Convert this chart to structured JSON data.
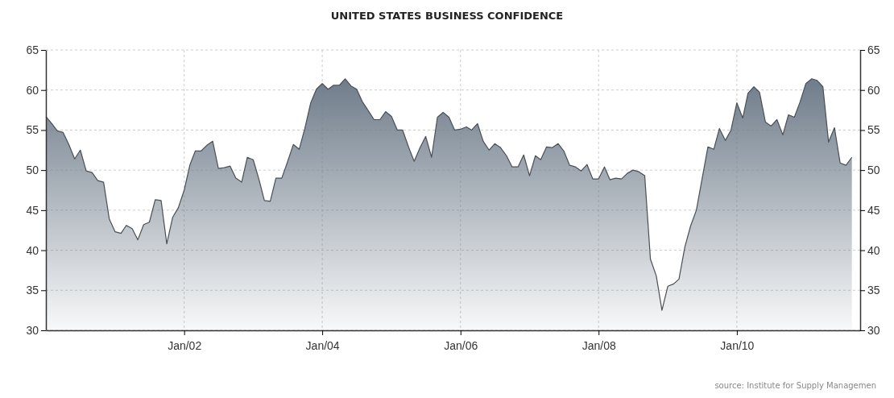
{
  "chart_data": {
    "type": "area",
    "title": "UNITED STATES BUSINESS CONFIDENCE",
    "x": [
      "2000-01",
      "2000-02",
      "2000-03",
      "2000-04",
      "2000-05",
      "2000-06",
      "2000-07",
      "2000-08",
      "2000-09",
      "2000-10",
      "2000-11",
      "2000-12",
      "2001-01",
      "2001-02",
      "2001-03",
      "2001-04",
      "2001-05",
      "2001-06",
      "2001-07",
      "2001-08",
      "2001-09",
      "2001-10",
      "2001-11",
      "2001-12",
      "2002-01",
      "2002-02",
      "2002-03",
      "2002-04",
      "2002-05",
      "2002-06",
      "2002-07",
      "2002-08",
      "2002-09",
      "2002-10",
      "2002-11",
      "2002-12",
      "2003-01",
      "2003-02",
      "2003-03",
      "2003-04",
      "2003-05",
      "2003-06",
      "2003-07",
      "2003-08",
      "2003-09",
      "2003-10",
      "2003-11",
      "2003-12",
      "2004-01",
      "2004-02",
      "2004-03",
      "2004-04",
      "2004-05",
      "2004-06",
      "2004-07",
      "2004-08",
      "2004-09",
      "2004-10",
      "2004-11",
      "2004-12",
      "2005-01",
      "2005-02",
      "2005-03",
      "2005-04",
      "2005-05",
      "2005-06",
      "2005-07",
      "2005-08",
      "2005-09",
      "2005-10",
      "2005-11",
      "2005-12",
      "2006-01",
      "2006-02",
      "2006-03",
      "2006-04",
      "2006-05",
      "2006-06",
      "2006-07",
      "2006-08",
      "2006-09",
      "2006-10",
      "2006-11",
      "2006-12",
      "2007-01",
      "2007-02",
      "2007-03",
      "2007-04",
      "2007-05",
      "2007-06",
      "2007-07",
      "2007-08",
      "2007-09",
      "2007-10",
      "2007-11",
      "2007-12",
      "2008-01",
      "2008-02",
      "2008-03",
      "2008-04",
      "2008-05",
      "2008-06",
      "2008-07",
      "2008-08",
      "2008-09",
      "2008-10",
      "2008-11",
      "2008-12",
      "2009-01",
      "2009-02",
      "2009-03",
      "2009-04",
      "2009-05",
      "2009-06",
      "2009-07",
      "2009-08",
      "2009-09",
      "2009-10",
      "2009-11",
      "2009-12",
      "2010-01",
      "2010-02",
      "2010-03",
      "2010-04",
      "2010-05",
      "2010-06",
      "2010-07",
      "2010-08",
      "2010-09",
      "2010-10",
      "2010-11",
      "2010-12",
      "2011-01",
      "2011-02",
      "2011-03",
      "2011-04",
      "2011-05",
      "2011-06",
      "2011-07",
      "2011-08",
      "2011-09"
    ],
    "series": [
      {
        "color": "#6f7c8a",
        "values": [
          56.7,
          55.8,
          54.9,
          54.7,
          53.2,
          51.4,
          52.5,
          49.9,
          49.7,
          48.7,
          48.5,
          43.9,
          42.3,
          42.1,
          43.1,
          42.7,
          41.3,
          43.2,
          43.5,
          46.3,
          46.2,
          40.8,
          44.1,
          45.3,
          47.5,
          50.7,
          52.4,
          52.4,
          53.1,
          53.6,
          50.2,
          50.3,
          50.5,
          49.0,
          48.5,
          51.6,
          51.3,
          48.8,
          46.2,
          46.1,
          49.0,
          49.0,
          51.0,
          53.2,
          52.6,
          55.2,
          58.4,
          60.1,
          60.8,
          60.1,
          60.6,
          60.6,
          61.4,
          60.5,
          60.1,
          58.5,
          57.4,
          56.3,
          56.3,
          57.3,
          56.7,
          55.0,
          55.0,
          52.9,
          51.1,
          52.8,
          54.2,
          51.6,
          56.6,
          57.2,
          56.6,
          55.0,
          55.1,
          55.4,
          55.0,
          55.8,
          53.6,
          52.5,
          53.3,
          52.8,
          51.8,
          50.4,
          50.4,
          51.9,
          49.3,
          51.8,
          51.3,
          52.9,
          52.8,
          53.3,
          52.4,
          50.6,
          50.4,
          49.9,
          50.7,
          48.9,
          48.9,
          50.4,
          48.8,
          49.0,
          48.9,
          49.6,
          50.0,
          49.8,
          49.3,
          38.9,
          36.8,
          32.5,
          35.5,
          35.8,
          36.4,
          40.4,
          43.0,
          45.0,
          48.9,
          52.9,
          52.6,
          55.2,
          53.7,
          55.0,
          58.4,
          56.5,
          59.6,
          60.4,
          59.7,
          56.0,
          55.5,
          56.3,
          54.4,
          56.9,
          56.6,
          58.5,
          60.8,
          61.4,
          61.2,
          60.4,
          53.5,
          55.3,
          50.9,
          50.6,
          51.6
        ]
      }
    ],
    "xlim": [
      "2000-01",
      "2011-10-15"
    ],
    "xticks": [
      {
        "value": "2002-01",
        "label": "Jan/02"
      },
      {
        "value": "2004-01",
        "label": "Jan/04"
      },
      {
        "value": "2006-01",
        "label": "Jan/06"
      },
      {
        "value": "2008-01",
        "label": "Jan/08"
      },
      {
        "value": "2010-01",
        "label": "Jan/10"
      }
    ],
    "ylim": [
      30,
      65
    ],
    "yticks": [
      30,
      35,
      40,
      45,
      50,
      55,
      60,
      65
    ],
    "y2lim": [
      30,
      65
    ],
    "y2ticks": [
      30,
      35,
      40,
      45,
      50,
      55,
      60,
      65
    ],
    "grid": true,
    "annotations": [
      "source: Institute for Supply Managemen"
    ]
  }
}
